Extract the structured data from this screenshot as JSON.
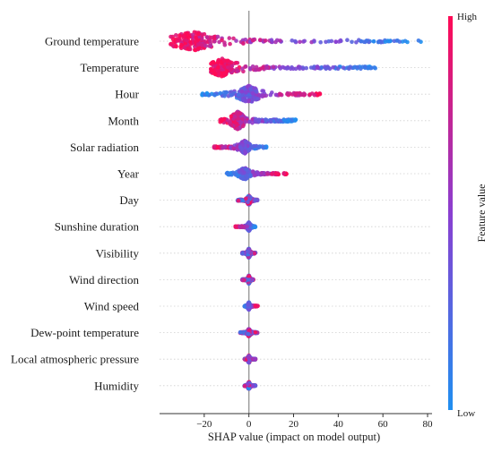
{
  "chart_data": {
    "type": "scatter",
    "subtype": "beeswarm",
    "xlabel": "SHAP value (impact on model output)",
    "x_ticks": [
      -20,
      0,
      20,
      40,
      60,
      80
    ],
    "xlim": [
      -40,
      82
    ],
    "grid": "dotted horizontal row guides",
    "zero_line": true,
    "colorbar": {
      "title": "Feature value",
      "high_label": "High",
      "low_label": "Low",
      "high_color": "#ff0a55",
      "low_color": "#1f8ff0",
      "mid_color": "#8a3fd1",
      "placement": "right"
    },
    "features": [
      {
        "name": "Ground temperature",
        "min": -35,
        "max": 78,
        "mode": -25,
        "spread": 1.0,
        "high_side": "negative"
      },
      {
        "name": "Temperature",
        "min": -17,
        "max": 57,
        "mode": -12,
        "spread": 0.95,
        "high_side": "negative"
      },
      {
        "name": "Hour",
        "min": -21,
        "max": 32,
        "mode": 0,
        "spread": 0.9,
        "high_side": "positive"
      },
      {
        "name": "Month",
        "min": -13,
        "max": 21,
        "mode": -5,
        "spread": 0.95,
        "high_side": "negative"
      },
      {
        "name": "Solar radiation",
        "min": -16,
        "max": 8,
        "mode": -2,
        "spread": 0.7,
        "high_side": "negative"
      },
      {
        "name": "Year",
        "min": -10,
        "max": 17,
        "mode": -2,
        "spread": 0.65,
        "high_side": "positive"
      },
      {
        "name": "Day",
        "min": -5,
        "max": 4,
        "mode": 0,
        "spread": 0.5,
        "high_side": "mixed"
      },
      {
        "name": "Sunshine duration",
        "min": -6,
        "max": 3,
        "mode": 0,
        "spread": 0.45,
        "high_side": "negative"
      },
      {
        "name": "Visibility",
        "min": -3,
        "max": 3,
        "mode": 0,
        "spread": 0.5,
        "high_side": "mixed"
      },
      {
        "name": "Wind direction",
        "min": -3,
        "max": 2,
        "mode": 0,
        "spread": 0.45,
        "high_side": "mixed"
      },
      {
        "name": "Wind speed",
        "min": -2,
        "max": 4,
        "mode": 0,
        "spread": 0.4,
        "high_side": "positive"
      },
      {
        "name": "Dew-point temperature",
        "min": -4,
        "max": 4,
        "mode": 0,
        "spread": 0.4,
        "high_side": "mixed"
      },
      {
        "name": "Local atmospheric pressure",
        "min": -2,
        "max": 3,
        "mode": 0,
        "spread": 0.4,
        "high_side": "mixed"
      },
      {
        "name": "Humidity",
        "min": -2,
        "max": 3,
        "mode": 0,
        "spread": 0.4,
        "high_side": "mixed"
      }
    ]
  }
}
